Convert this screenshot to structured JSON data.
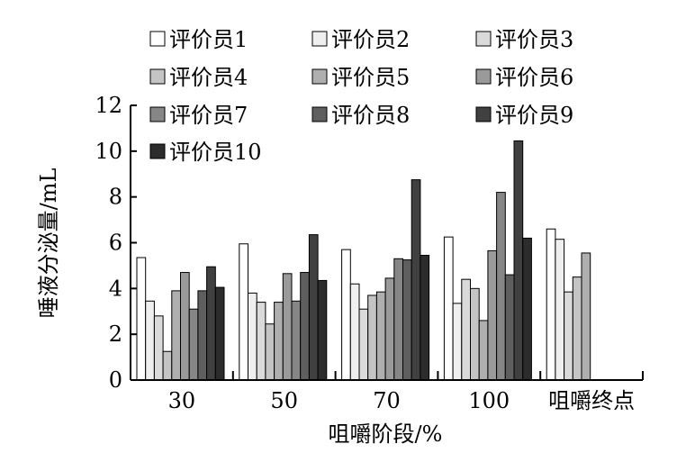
{
  "chart_data": {
    "type": "bar",
    "title": "",
    "xlabel": "咀嚼阶段/%",
    "ylabel": "唾液分泌量/mL",
    "ylim": [
      0,
      12
    ],
    "yticks": [
      "0",
      "2",
      "4",
      "6",
      "8",
      "10",
      "12"
    ],
    "categories": [
      "30",
      "50",
      "70",
      "100",
      "咀嚼终点"
    ],
    "legend_position": "top-left",
    "grid": false,
    "series": [
      {
        "name": "评价员1",
        "color": "#ffffff",
        "values": [
          5.35,
          5.95,
          5.7,
          6.25,
          6.6
        ]
      },
      {
        "name": "评价员2",
        "color": "#efefef",
        "values": [
          3.45,
          3.8,
          4.2,
          3.35,
          6.15
        ]
      },
      {
        "name": "评价员3",
        "color": "#dadada",
        "values": [
          2.8,
          3.4,
          3.1,
          4.4,
          3.85
        ]
      },
      {
        "name": "评价员4",
        "color": "#c4c4c4",
        "values": [
          1.25,
          2.45,
          3.7,
          4.0,
          4.5
        ]
      },
      {
        "name": "评价员5",
        "color": "#afafaf",
        "values": [
          3.9,
          3.4,
          3.85,
          2.6,
          5.55
        ]
      },
      {
        "name": "评价员6",
        "color": "#9a9a9a",
        "values": [
          4.7,
          4.65,
          4.45,
          5.65,
          null
        ]
      },
      {
        "name": "评价员7",
        "color": "#868686",
        "values": [
          3.1,
          3.45,
          5.3,
          8.2,
          null
        ]
      },
      {
        "name": "评价员8",
        "color": "#5f5f5f",
        "values": [
          3.9,
          4.7,
          5.25,
          4.6,
          null
        ]
      },
      {
        "name": "评价员9",
        "color": "#404040",
        "values": [
          4.95,
          6.35,
          8.75,
          10.45,
          null
        ]
      },
      {
        "name": "评价员10",
        "color": "#2c2c2c",
        "values": [
          4.05,
          4.35,
          5.45,
          6.2,
          null
        ]
      }
    ]
  }
}
